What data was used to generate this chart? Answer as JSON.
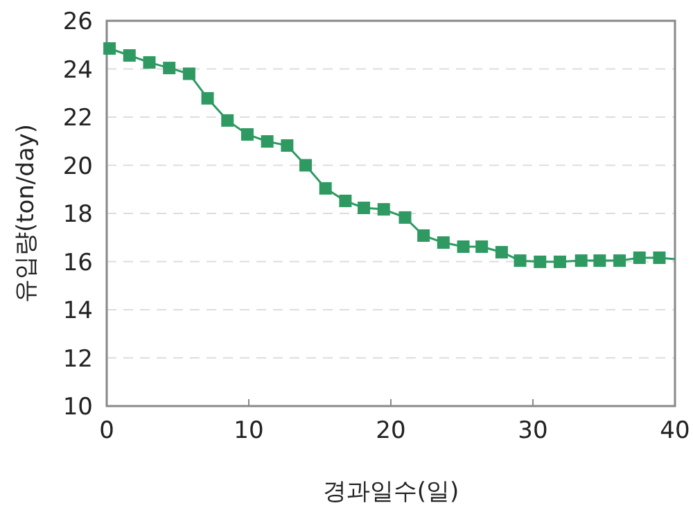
{
  "chart_data": {
    "type": "line",
    "xlabel": "경과일수(일)",
    "ylabel": "유입량(ton/day)",
    "xlim": [
      0,
      40
    ],
    "xticks": [
      0,
      10,
      20,
      30,
      40
    ],
    "ylim": [
      10,
      26
    ],
    "yticks": [
      10,
      12,
      14,
      16,
      18,
      20,
      22,
      24,
      26
    ],
    "grid": "y",
    "series": [
      {
        "color": "#2e9a62",
        "marker": "square",
        "x": [
          0.2,
          1.6,
          3.0,
          4.4,
          5.8,
          7.1,
          8.5,
          9.9,
          11.3,
          12.7,
          14.0,
          15.4,
          16.8,
          18.1,
          19.5,
          21.0,
          22.3,
          23.7,
          25.1,
          26.4,
          27.8,
          29.1,
          30.5,
          31.9,
          33.4,
          34.7,
          36.1,
          37.5,
          38.9
        ],
        "values": [
          24.85,
          24.56,
          24.27,
          24.04,
          23.8,
          22.78,
          21.86,
          21.28,
          20.99,
          20.82,
          20.0,
          19.04,
          18.52,
          18.23,
          18.17,
          17.83,
          17.08,
          16.79,
          16.62,
          16.62,
          16.39,
          16.04,
          15.99,
          15.99,
          16.04,
          16.04,
          16.04,
          16.16,
          16.16
        ]
      },
      {
        "color": "#2e9a62",
        "marker": "none",
        "x": [
          38.9,
          40
        ],
        "values": [
          16.16,
          16.1
        ]
      }
    ]
  }
}
